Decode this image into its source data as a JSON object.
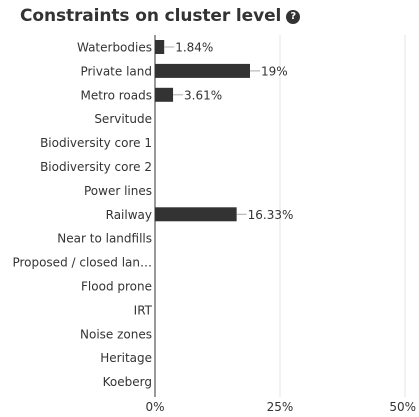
{
  "header": {
    "title": "Constraints on cluster level",
    "help_icon": "question-circle-icon",
    "help_glyph": "?"
  },
  "colors": {
    "bar": "#333333",
    "grid": "#e6e6e6",
    "axis": "#333333",
    "leader": "#aaaaaa"
  },
  "chart_data": {
    "type": "bar",
    "orientation": "horizontal",
    "title": "Constraints on cluster level",
    "categories": [
      "Waterbodies",
      "Private land",
      "Metro roads",
      "Servitude",
      "Biodiversity core 1",
      "Biodiversity core 2",
      "Power lines",
      "Railway",
      "Near to landfills",
      "Proposed / closed lan…",
      "Flood prone",
      "IRT",
      "Noise zones",
      "Heritage",
      "Koeberg"
    ],
    "values": [
      1.84,
      19,
      3.61,
      0,
      0,
      0,
      0,
      16.33,
      0,
      0,
      0,
      0,
      0,
      0,
      0
    ],
    "value_labels": [
      "1.84%",
      "19%",
      "3.61%",
      "",
      "",
      "",
      "",
      "16.33%",
      "",
      "",
      "",
      "",
      "",
      "",
      ""
    ],
    "xlim": [
      0,
      50
    ],
    "xticks": [
      0,
      25,
      50
    ],
    "xtick_labels": [
      "0%",
      "25%",
      "50%"
    ],
    "grid": true,
    "legend": "none"
  }
}
